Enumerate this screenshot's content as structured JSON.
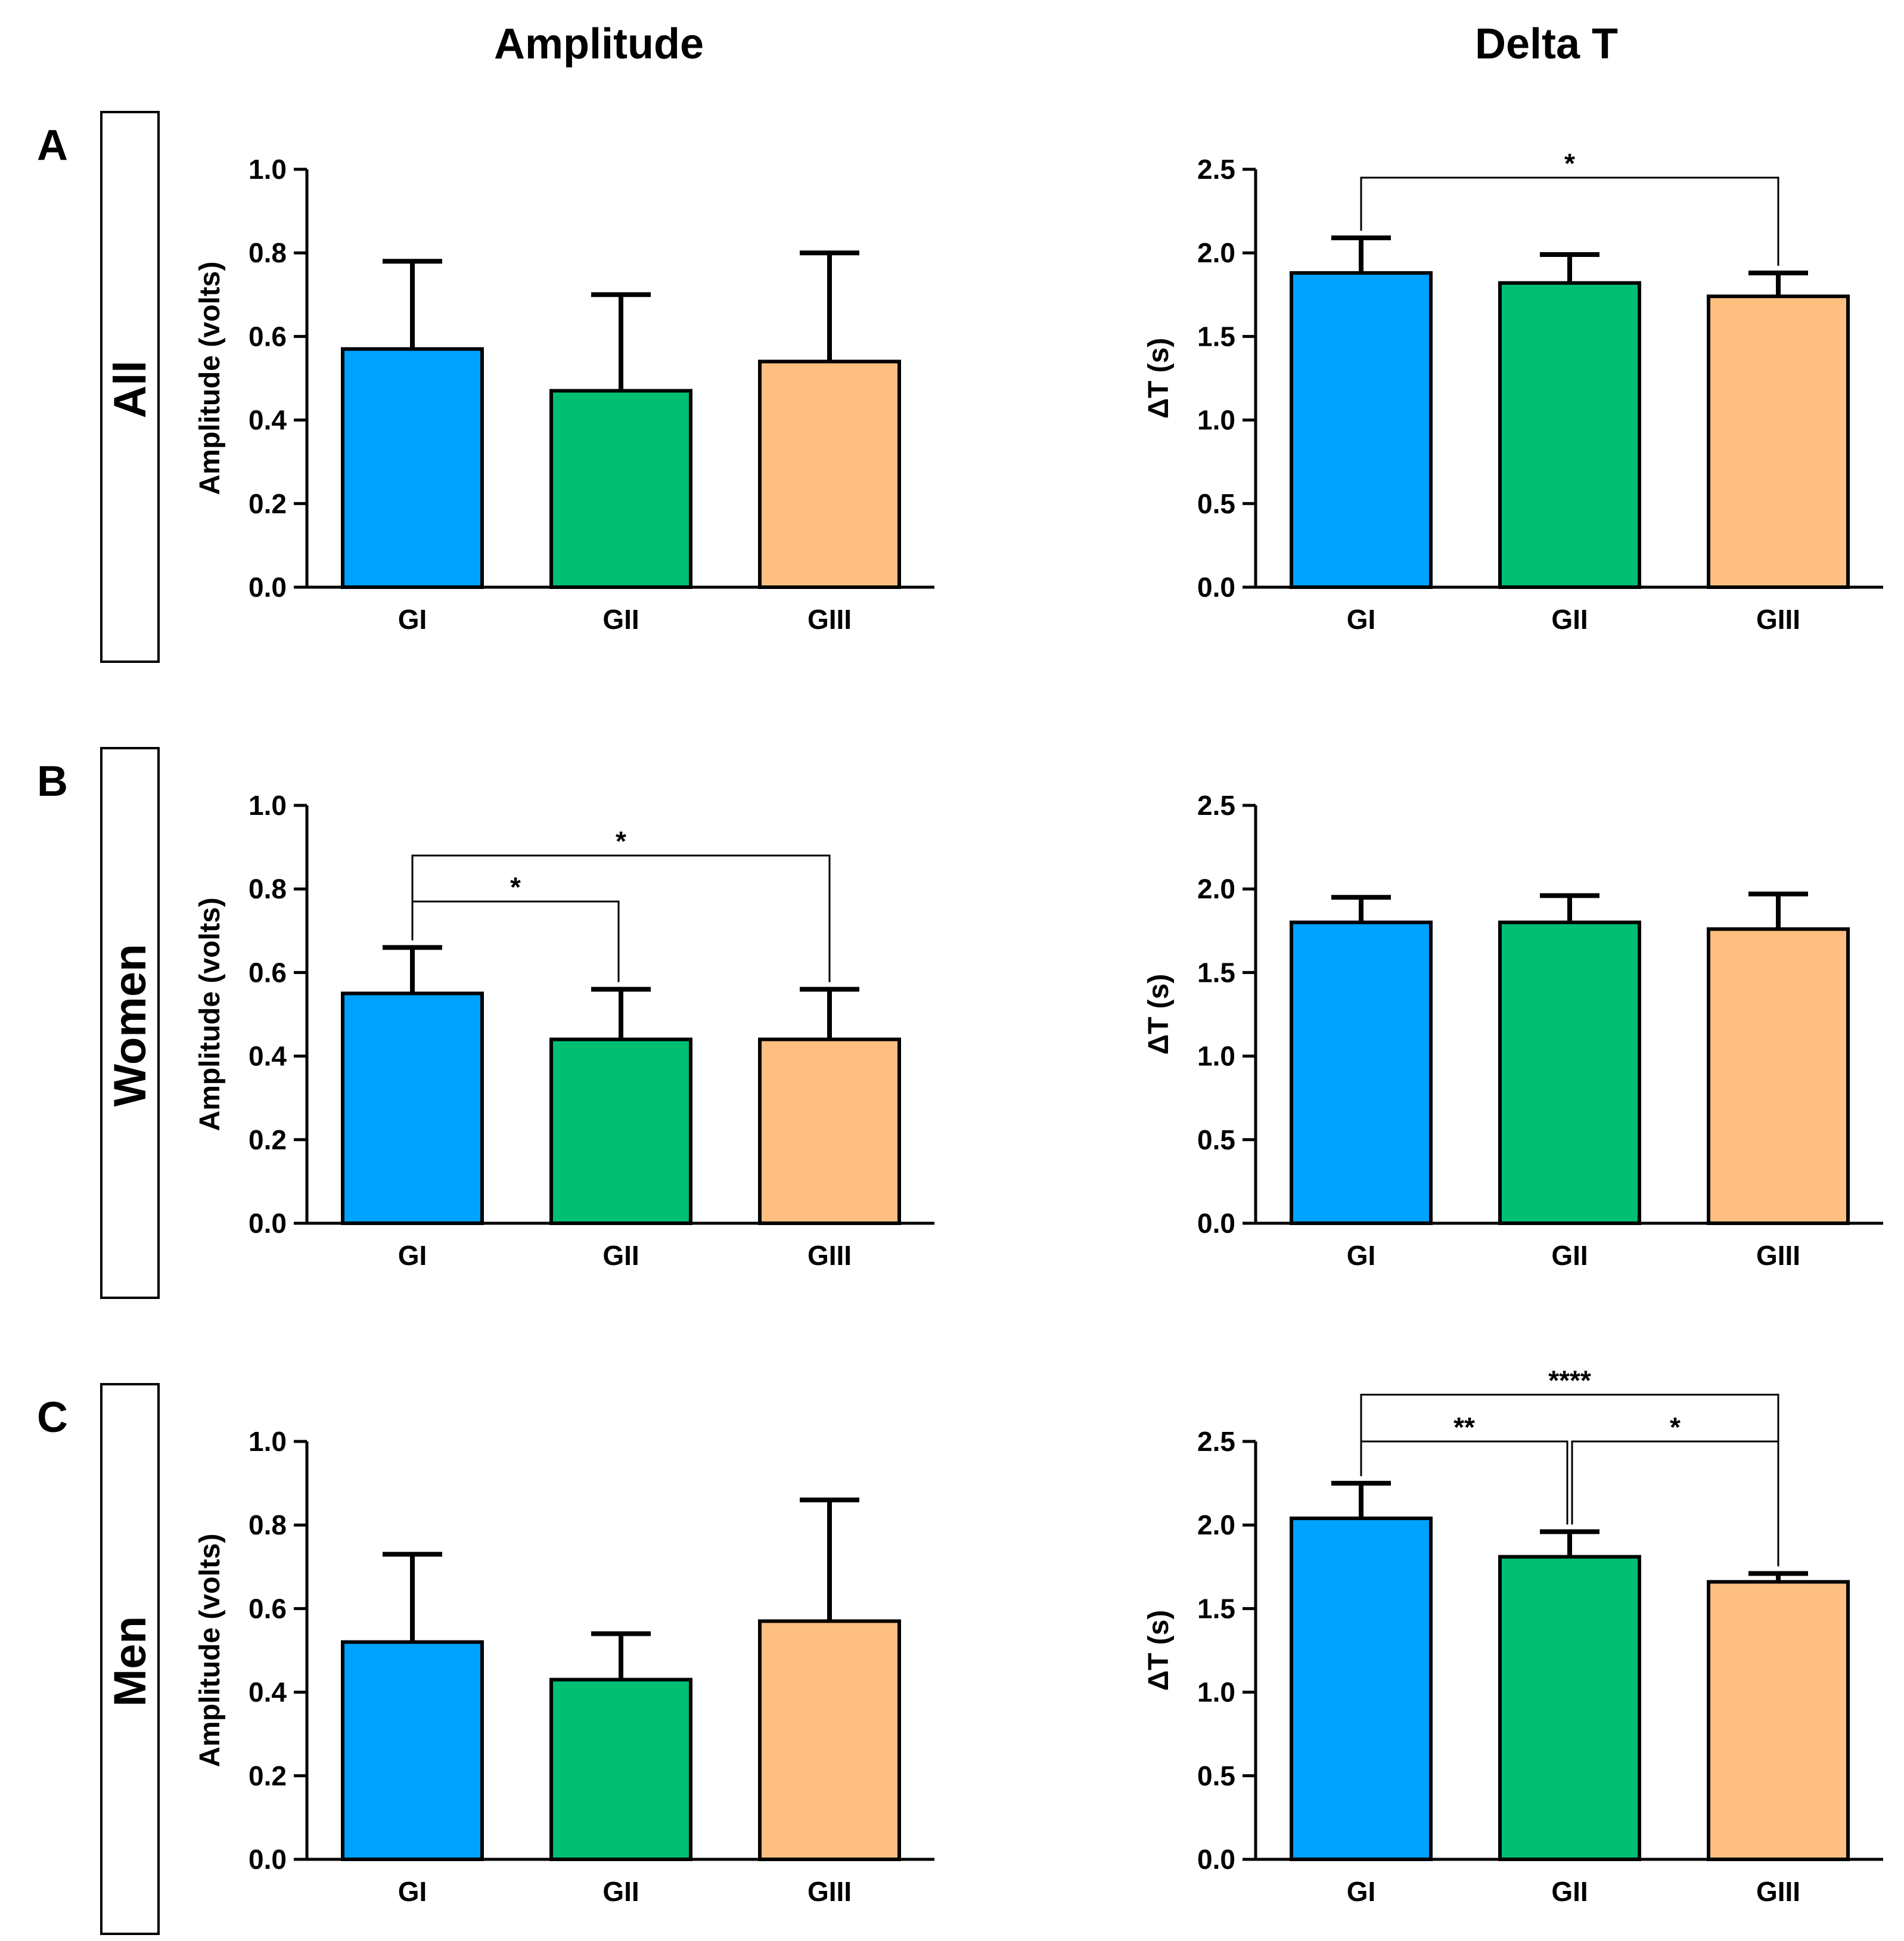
{
  "column_titles": [
    "Amplitude",
    "Delta T"
  ],
  "rows": [
    {
      "letter": "A",
      "label": "All"
    },
    {
      "letter": "B",
      "label": "Women"
    },
    {
      "letter": "C",
      "label": "Men"
    }
  ],
  "colors": {
    "GI": "#00a2ff",
    "GII": "#00bf73",
    "GIII": "#ffbf80",
    "row_letter": "#1a1aff",
    "axis": "#000000"
  },
  "chart_data": [
    {
      "type": "bar",
      "row": "All",
      "column": "Amplitude",
      "categories": [
        "GI",
        "GII",
        "GIII"
      ],
      "values": [
        0.57,
        0.47,
        0.54
      ],
      "error_upper": [
        0.78,
        0.7,
        0.8
      ],
      "ylabel": "Amplitude (volts)",
      "ylim": [
        0,
        1.0
      ],
      "yticks": [
        "0.0",
        "0.2",
        "0.4",
        "0.6",
        "0.8",
        "1.0"
      ],
      "significance": []
    },
    {
      "type": "bar",
      "row": "All",
      "column": "Delta T",
      "categories": [
        "GI",
        "GII",
        "GIII"
      ],
      "values": [
        1.88,
        1.82,
        1.74
      ],
      "error_upper": [
        2.09,
        1.99,
        1.88
      ],
      "ylabel": "ΔT (s)",
      "ylim": [
        0,
        2.5
      ],
      "yticks": [
        "0.0",
        "0.5",
        "1.0",
        "1.5",
        "2.0",
        "2.5"
      ],
      "significance": [
        {
          "from": 0,
          "to": 2,
          "label": "*",
          "y": 2.45
        }
      ]
    },
    {
      "type": "bar",
      "row": "Women",
      "column": "Amplitude",
      "categories": [
        "GI",
        "GII",
        "GIII"
      ],
      "values": [
        0.55,
        0.44,
        0.44
      ],
      "error_upper": [
        0.66,
        0.56,
        0.56
      ],
      "ylabel": "Amplitude (volts)",
      "ylim": [
        0,
        1.0
      ],
      "yticks": [
        "0.0",
        "0.2",
        "0.4",
        "0.6",
        "0.8",
        "1.0"
      ],
      "significance": [
        {
          "from": 0,
          "to": 1,
          "label": "*",
          "y": 0.77
        },
        {
          "from": 0,
          "to": 2,
          "label": "*",
          "y": 0.88
        }
      ]
    },
    {
      "type": "bar",
      "row": "Women",
      "column": "Delta T",
      "categories": [
        "GI",
        "GII",
        "GIII"
      ],
      "values": [
        1.8,
        1.8,
        1.76
      ],
      "error_upper": [
        1.95,
        1.96,
        1.97
      ],
      "ylabel": "ΔT (s)",
      "ylim": [
        0,
        2.5
      ],
      "yticks": [
        "0.0",
        "0.5",
        "1.0",
        "1.5",
        "2.0",
        "2.5"
      ],
      "significance": []
    },
    {
      "type": "bar",
      "row": "Men",
      "column": "Amplitude",
      "categories": [
        "GI",
        "GII",
        "GIII"
      ],
      "values": [
        0.52,
        0.43,
        0.57
      ],
      "error_upper": [
        0.73,
        0.54,
        0.86
      ],
      "ylabel": "Amplitude (volts)",
      "ylim": [
        0,
        1.0
      ],
      "yticks": [
        "0.0",
        "0.2",
        "0.4",
        "0.6",
        "0.8",
        "1.0"
      ],
      "significance": []
    },
    {
      "type": "bar",
      "row": "Men",
      "column": "Delta T",
      "categories": [
        "GI",
        "GII",
        "GIII"
      ],
      "values": [
        2.04,
        1.81,
        1.66
      ],
      "error_upper": [
        2.25,
        1.96,
        1.71
      ],
      "ylabel": "ΔT (s)",
      "ylim": [
        0,
        2.5
      ],
      "yticks": [
        "0.0",
        "0.5",
        "1.0",
        "1.5",
        "2.0",
        "2.5"
      ],
      "significance": [
        {
          "from": 0,
          "to": 1,
          "label": "**",
          "y": 2.5
        },
        {
          "from": 1,
          "to": 2,
          "label": "*",
          "y": 2.5
        },
        {
          "from": 0,
          "to": 2,
          "label": "****",
          "y": 2.78
        }
      ]
    }
  ]
}
